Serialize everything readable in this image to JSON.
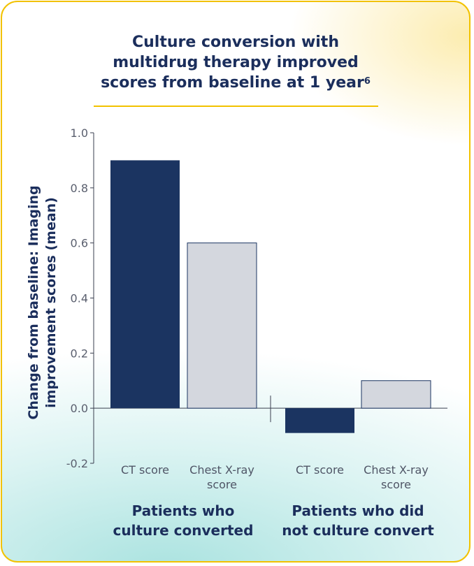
{
  "title_lines": [
    "Culture conversion with",
    "multidrug therapy improved",
    "scores from baseline at 1 year"
  ],
  "title_superscript": "6",
  "colors": {
    "ct": "#1b3461",
    "xray": "#d4d7de",
    "xray_stroke": "#1b3461",
    "border": "#f2c200",
    "text": "#1b2e5c"
  },
  "chart_data": {
    "type": "bar",
    "title": "Culture conversion with multidrug therapy improved scores from baseline at 1 year",
    "ylabel_lines": [
      "Change from baseline: Imaging",
      "improvement scores (mean)"
    ],
    "ylim": [
      -0.2,
      1.0
    ],
    "yticks": [
      "1.0",
      "0.8",
      "0.6",
      "0.4",
      "0.2",
      "0.0",
      "-0.2"
    ],
    "groups": [
      {
        "label_lines": [
          "Patients who",
          "culture converted"
        ],
        "bars": [
          {
            "label_lines": [
              "CT score"
            ],
            "value": 0.9,
            "series": "ct"
          },
          {
            "label_lines": [
              "Chest X-ray",
              "score"
            ],
            "value": 0.6,
            "series": "xray"
          }
        ]
      },
      {
        "label_lines": [
          "Patients who did",
          "not culture convert"
        ],
        "bars": [
          {
            "label_lines": [
              "CT score"
            ],
            "value": -0.09,
            "series": "ct"
          },
          {
            "label_lines": [
              "Chest X-ray",
              "score"
            ],
            "value": 0.1,
            "series": "xray"
          }
        ]
      }
    ]
  }
}
